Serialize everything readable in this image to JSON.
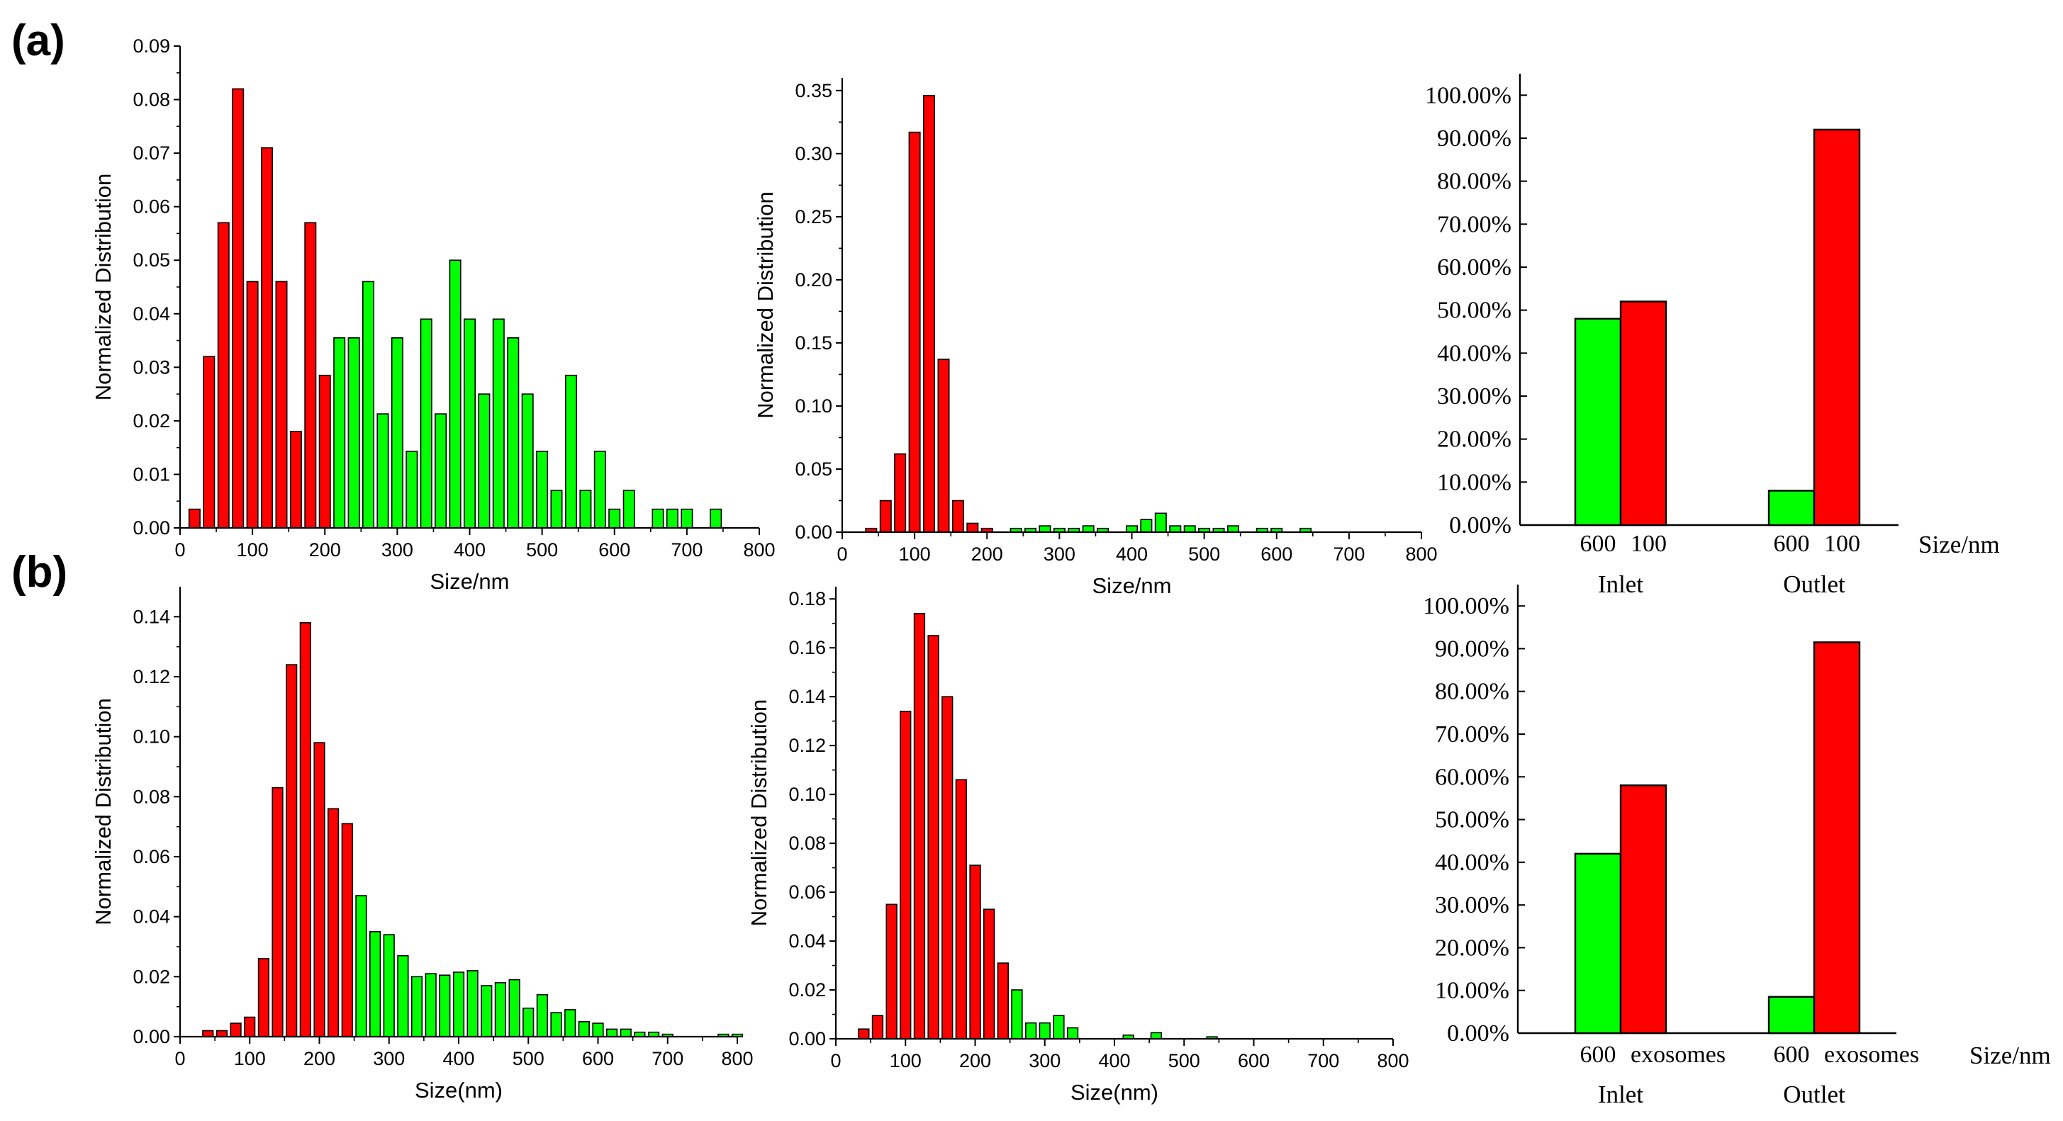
{
  "colors": {
    "red": "#ff0000",
    "green": "#00ff00",
    "axis": "#000000"
  },
  "figure": {
    "labels": {
      "a": "(a)",
      "b": "(b)"
    }
  },
  "chart_data": [
    {
      "id": "a1",
      "type": "bar",
      "row": "a",
      "xlabel": "Size/nm",
      "ylabel": "Normalized Distribution",
      "xlim": [
        0,
        800
      ],
      "ylim": [
        0,
        0.09
      ],
      "xticks": [
        0,
        100,
        200,
        300,
        400,
        500,
        600,
        700,
        800
      ],
      "yticks": [
        0.0,
        0.01,
        0.02,
        0.03,
        0.04,
        0.05,
        0.06,
        0.07,
        0.08,
        0.09
      ],
      "ytick_decimals": 2,
      "bin_width": 20,
      "series": [
        {
          "color": "red",
          "x": [
            20,
            40,
            60,
            80,
            100,
            120,
            140,
            160,
            180,
            200
          ],
          "values": [
            0.0035,
            0.032,
            0.057,
            0.082,
            0.046,
            0.071,
            0.046,
            0.018,
            0.057,
            0.0285
          ]
        },
        {
          "color": "green",
          "x": [
            220,
            240,
            260,
            280,
            300,
            320,
            340,
            360,
            380,
            400,
            420,
            440,
            460,
            480,
            500,
            520,
            540,
            560,
            580,
            600,
            620,
            660,
            680,
            700,
            740
          ],
          "values": [
            0.0355,
            0.0355,
            0.046,
            0.0213,
            0.0355,
            0.0143,
            0.039,
            0.0213,
            0.05,
            0.039,
            0.025,
            0.039,
            0.0355,
            0.025,
            0.0143,
            0.007,
            0.0285,
            0.007,
            0.0143,
            0.0035,
            0.007,
            0.0035,
            0.0035,
            0.0035,
            0.0035
          ]
        }
      ]
    },
    {
      "id": "a2",
      "type": "bar",
      "row": "a",
      "xlabel": "Size/nm",
      "ylabel": "Normalized Distribution",
      "xlim": [
        0,
        800
      ],
      "ylim": [
        0,
        0.36
      ],
      "xticks": [
        0,
        100,
        200,
        300,
        400,
        500,
        600,
        700,
        800
      ],
      "yticks": [
        0.0,
        0.05,
        0.1,
        0.15,
        0.2,
        0.25,
        0.3,
        0.35
      ],
      "ytick_decimals": 2,
      "bin_width": 20,
      "series": [
        {
          "color": "red",
          "x": [
            40,
            60,
            80,
            100,
            120,
            140,
            160,
            180,
            200
          ],
          "values": [
            0.003,
            0.025,
            0.062,
            0.317,
            0.346,
            0.137,
            0.025,
            0.007,
            0.003
          ]
        },
        {
          "color": "green",
          "x": [
            240,
            260,
            280,
            300,
            320,
            340,
            360,
            400,
            420,
            440,
            460,
            480,
            500,
            520,
            540,
            580,
            600,
            640
          ],
          "values": [
            0.003,
            0.003,
            0.005,
            0.003,
            0.003,
            0.005,
            0.003,
            0.005,
            0.01,
            0.015,
            0.005,
            0.005,
            0.003,
            0.003,
            0.005,
            0.003,
            0.003,
            0.003
          ]
        }
      ]
    },
    {
      "id": "a3",
      "type": "bar",
      "row": "a",
      "xlabel": "Size/nm",
      "ylim": [
        0,
        1.05
      ],
      "yticks": [
        "0.00%",
        "10.00%",
        "20.00%",
        "30.00%",
        "40.00%",
        "50.00%",
        "60.00%",
        "70.00%",
        "80.00%",
        "90.00%",
        "100.00%"
      ],
      "groups": [
        {
          "name": "Inlet",
          "bars": [
            {
              "label": "600",
              "color": "green",
              "value": 0.48
            },
            {
              "label": "100",
              "color": "red",
              "value": 0.52
            }
          ]
        },
        {
          "name": "Outlet",
          "bars": [
            {
              "label": "600",
              "color": "green",
              "value": 0.08
            },
            {
              "label": "100",
              "color": "red",
              "value": 0.92
            }
          ]
        }
      ]
    },
    {
      "id": "b1",
      "type": "bar",
      "row": "b",
      "xlabel": "Size(nm)",
      "ylabel": "Normalized Distribution",
      "xlim": [
        0,
        800
      ],
      "ylim": [
        0,
        0.15
      ],
      "xticks": [
        0,
        100,
        200,
        300,
        400,
        500,
        600,
        700,
        800
      ],
      "yticks": [
        0.0,
        0.02,
        0.04,
        0.06,
        0.08,
        0.1,
        0.12,
        0.14
      ],
      "ytick_decimals": 2,
      "bin_width": 20,
      "series": [
        {
          "color": "red",
          "x": [
            40,
            60,
            80,
            100,
            120,
            140,
            160,
            180,
            200,
            220,
            240
          ],
          "values": [
            0.002,
            0.002,
            0.0045,
            0.0065,
            0.026,
            0.083,
            0.124,
            0.138,
            0.098,
            0.076,
            0.071
          ]
        },
        {
          "color": "green",
          "x": [
            260,
            280,
            300,
            320,
            340,
            360,
            380,
            400,
            420,
            440,
            460,
            480,
            500,
            520,
            540,
            560,
            580,
            600,
            620,
            640,
            660,
            680,
            700,
            780,
            800
          ],
          "values": [
            0.047,
            0.035,
            0.034,
            0.027,
            0.02,
            0.021,
            0.0205,
            0.0215,
            0.022,
            0.017,
            0.018,
            0.019,
            0.0095,
            0.014,
            0.008,
            0.009,
            0.005,
            0.0045,
            0.0025,
            0.0025,
            0.0015,
            0.0015,
            0.0008,
            0.0008,
            0.0008
          ]
        }
      ]
    },
    {
      "id": "b2",
      "type": "bar",
      "row": "b",
      "xlabel": "Size(nm)",
      "ylabel": "Normalized Distribution",
      "xlim": [
        0,
        800
      ],
      "ylim": [
        0,
        0.185
      ],
      "xticks": [
        0,
        100,
        200,
        300,
        400,
        500,
        600,
        700,
        800
      ],
      "yticks": [
        0.0,
        0.02,
        0.04,
        0.06,
        0.08,
        0.1,
        0.12,
        0.14,
        0.16,
        0.18
      ],
      "ytick_decimals": 2,
      "bin_width": 20,
      "series": [
        {
          "color": "red",
          "x": [
            40,
            60,
            80,
            100,
            120,
            140,
            160,
            180,
            200,
            220,
            240
          ],
          "values": [
            0.004,
            0.0095,
            0.055,
            0.134,
            0.174,
            0.165,
            0.14,
            0.106,
            0.071,
            0.053,
            0.031
          ]
        },
        {
          "color": "green",
          "x": [
            260,
            280,
            300,
            320,
            340,
            420,
            460,
            540
          ],
          "values": [
            0.02,
            0.0065,
            0.0065,
            0.0095,
            0.0045,
            0.0015,
            0.0025,
            0.0008
          ]
        }
      ]
    },
    {
      "id": "b3",
      "type": "bar",
      "row": "b",
      "xlabel": "Size/nm",
      "ylim": [
        0,
        1.05
      ],
      "yticks": [
        "0.00%",
        "10.00%",
        "20.00%",
        "30.00%",
        "40.00%",
        "50.00%",
        "60.00%",
        "70.00%",
        "80.00%",
        "90.00%",
        "100.00%"
      ],
      "groups": [
        {
          "name": "Inlet",
          "bars": [
            {
              "label": "600",
              "color": "green",
              "value": 0.42
            },
            {
              "label": "exosomes",
              "color": "red",
              "value": 0.58
            }
          ]
        },
        {
          "name": "Outlet",
          "bars": [
            {
              "label": "600",
              "color": "green",
              "value": 0.085
            },
            {
              "label": "exosomes",
              "color": "red",
              "value": 0.915
            }
          ]
        }
      ]
    }
  ]
}
